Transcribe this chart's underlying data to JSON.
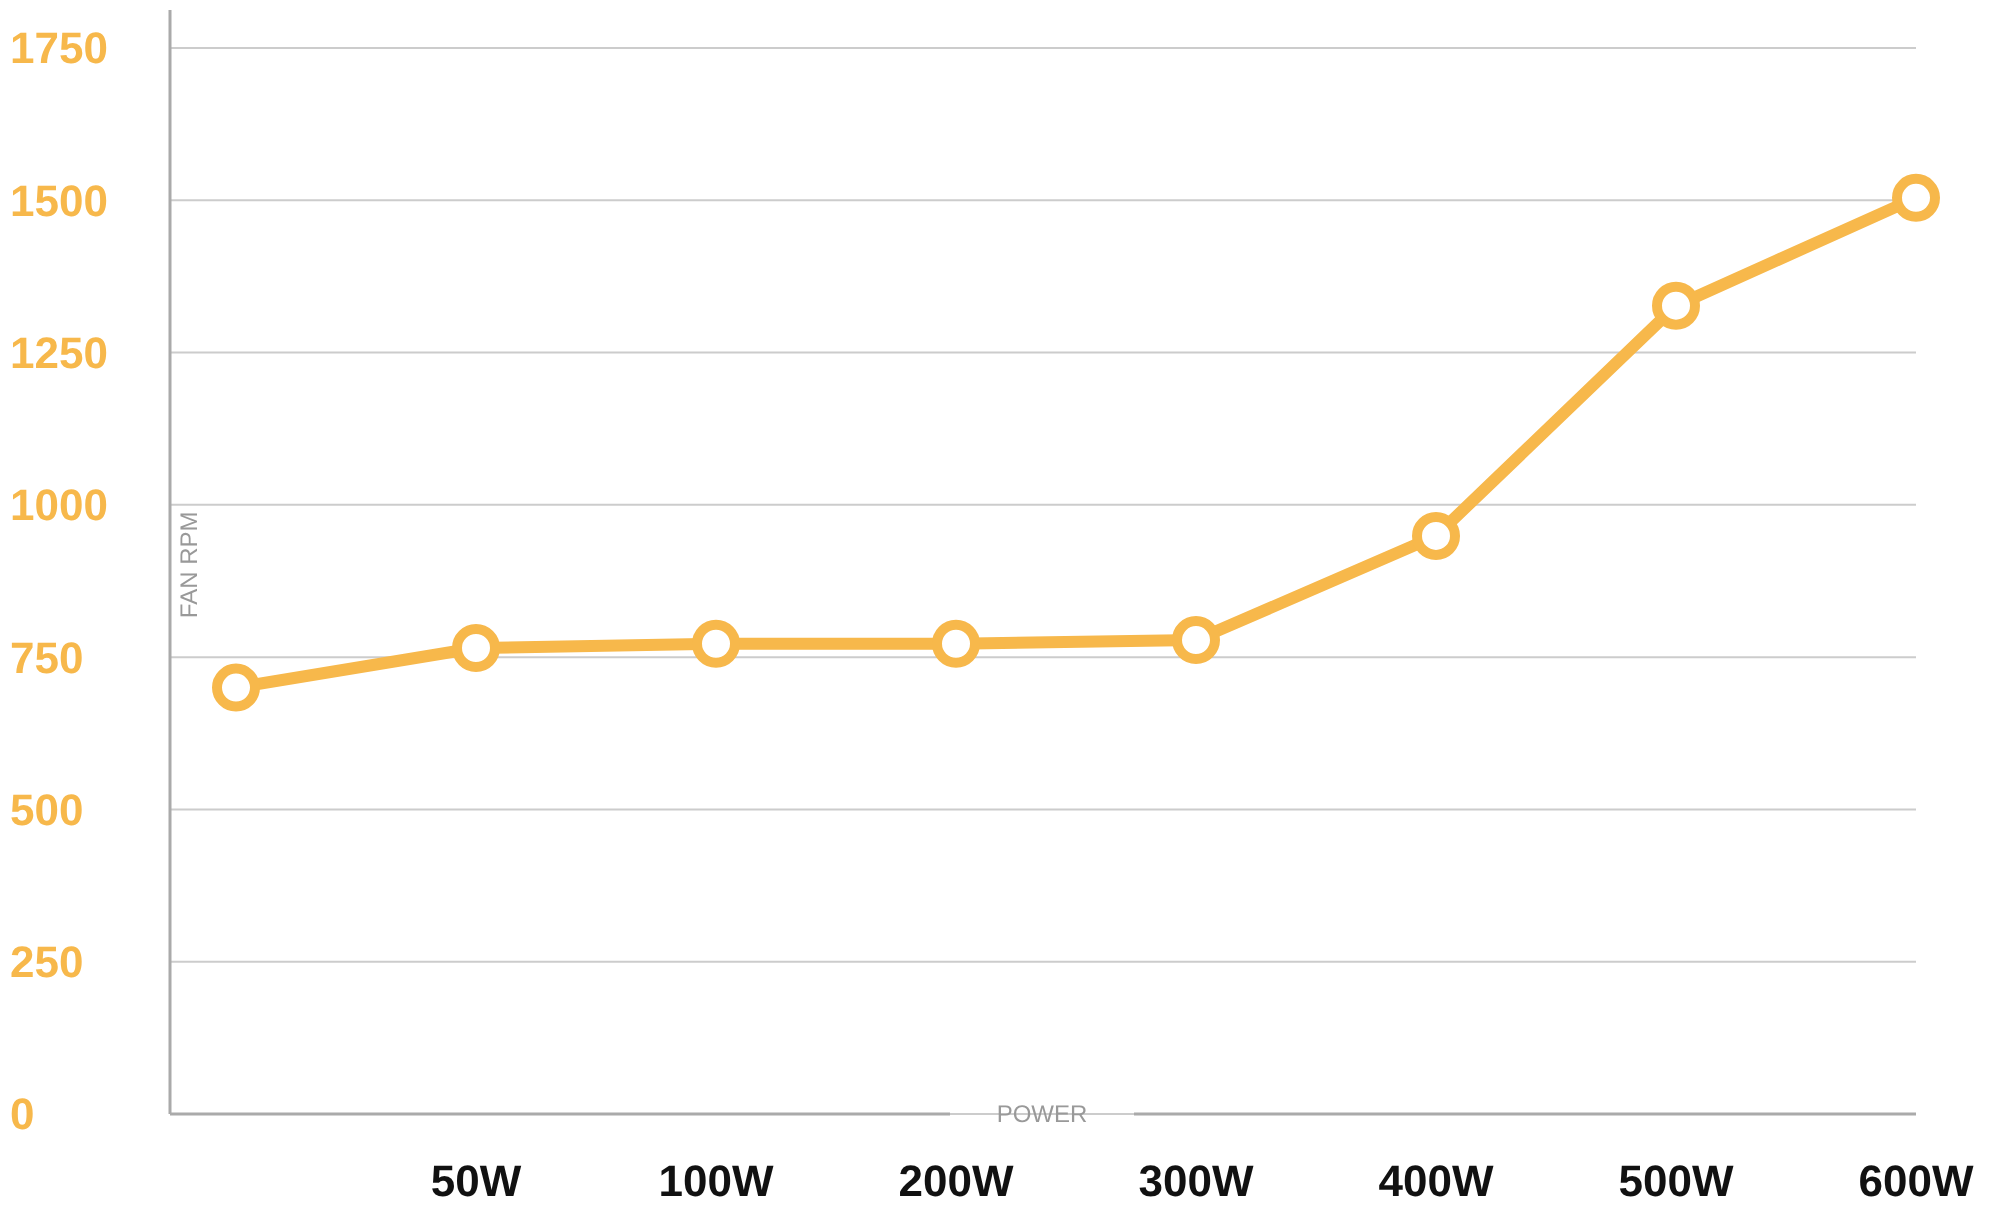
{
  "chart_data": {
    "type": "line",
    "xlabel": "POWER",
    "ylabel": "FAN RPM",
    "categories": [
      null,
      "50W",
      "100W",
      "200W",
      "300W",
      "400W",
      "500W",
      "600W"
    ],
    "series": [
      {
        "color": "#f7b84b",
        "values": [
          700,
          765,
          772,
          772,
          778,
          949,
          1327,
          1504
        ]
      }
    ],
    "ylim": [
      0,
      1750
    ],
    "yticks": [
      0,
      250,
      500,
      750,
      1000,
      1250,
      1500,
      1750
    ],
    "grid": "y",
    "marker": "circle",
    "line_style": "solid"
  }
}
